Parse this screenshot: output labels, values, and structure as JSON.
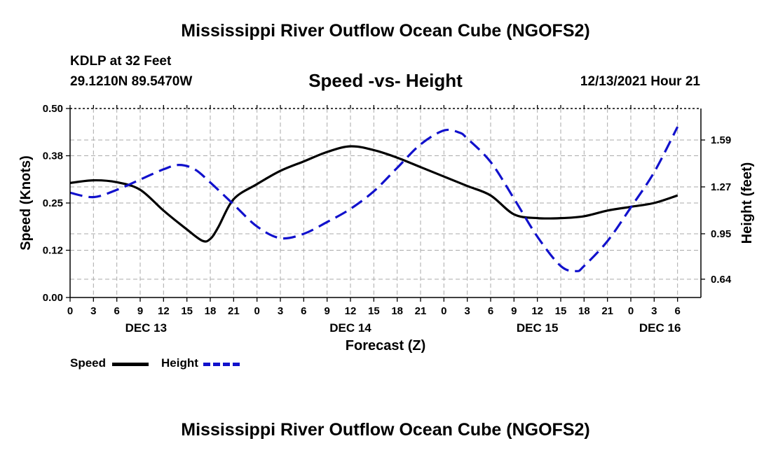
{
  "header": {
    "title": "Mississippi River Outflow Ocean Cube (NGOFS2)",
    "station": "KDLP at 32 Feet",
    "coordinates": "29.1210N  89.5470W",
    "subtitle": "Speed -vs- Height",
    "datetime": "12/13/2021 Hour 21"
  },
  "footer": {
    "title": "Mississippi River Outflow Ocean Cube (NGOFS2)"
  },
  "legend": {
    "speed_label": "Speed",
    "height_label": "Height"
  },
  "colors": {
    "speed": "#000000",
    "height": "#1111cc",
    "grid": "#aaaaaa"
  },
  "chart_data": {
    "type": "line",
    "title": "Speed -vs- Height",
    "xlabel": "Forecast (Z)",
    "ylabel": "Speed (Knots)",
    "y2label": "Height (feet)",
    "xlim": [
      0,
      81
    ],
    "ylim": [
      0.0,
      0.5
    ],
    "y2lim": [
      0.515,
      1.805
    ],
    "y_ticks": [
      "0.00",
      "0.12",
      "0.25",
      "0.38",
      "0.50"
    ],
    "y_tick_values": [
      0.0,
      0.125,
      0.25,
      0.375,
      0.5
    ],
    "y2_ticks": [
      "0.64",
      "0.95",
      "1.27",
      "1.59"
    ],
    "y2_tick_values": [
      0.64,
      0.95,
      1.27,
      1.59
    ],
    "x_tick_labels": [
      "0",
      "3",
      "6",
      "9",
      "12",
      "15",
      "18",
      "21",
      "0",
      "3",
      "6",
      "9",
      "12",
      "15",
      "18",
      "21",
      "0",
      "3",
      "6",
      "9",
      "12",
      "15",
      "18",
      "21",
      "0",
      "3",
      "6"
    ],
    "x_tick_values": [
      0,
      3,
      6,
      9,
      12,
      15,
      18,
      21,
      24,
      27,
      30,
      33,
      36,
      39,
      42,
      45,
      48,
      51,
      54,
      57,
      60,
      63,
      66,
      69,
      72,
      75,
      78
    ],
    "day_labels": [
      {
        "label": "DEC 13",
        "x": 9.75
      },
      {
        "label": "DEC 14",
        "x": 36
      },
      {
        "label": "DEC 15",
        "x": 60
      },
      {
        "label": "DEC 16",
        "x": 75.75
      }
    ],
    "grid": true,
    "legend_position": "bottom-left",
    "series": [
      {
        "name": "Speed",
        "axis": "left",
        "style": "solid",
        "points": [
          [
            0,
            0.303
          ],
          [
            3,
            0.31
          ],
          [
            6,
            0.305
          ],
          [
            9,
            0.285
          ],
          [
            12,
            0.23
          ],
          [
            15,
            0.18
          ],
          [
            17,
            0.15
          ],
          [
            18,
            0.155
          ],
          [
            19,
            0.185
          ],
          [
            21,
            0.26
          ],
          [
            24,
            0.3
          ],
          [
            27,
            0.335
          ],
          [
            30,
            0.36
          ],
          [
            33,
            0.385
          ],
          [
            36,
            0.4
          ],
          [
            39,
            0.39
          ],
          [
            42,
            0.37
          ],
          [
            45,
            0.345
          ],
          [
            48,
            0.32
          ],
          [
            51,
            0.295
          ],
          [
            54,
            0.27
          ],
          [
            57,
            0.22
          ],
          [
            60,
            0.21
          ],
          [
            63,
            0.21
          ],
          [
            66,
            0.215
          ],
          [
            69,
            0.23
          ],
          [
            72,
            0.24
          ],
          [
            75,
            0.25
          ],
          [
            78,
            0.27
          ]
        ]
      },
      {
        "name": "Height",
        "axis": "right",
        "style": "dashed",
        "points": [
          [
            0,
            1.23
          ],
          [
            3,
            1.2
          ],
          [
            6,
            1.25
          ],
          [
            9,
            1.32
          ],
          [
            12,
            1.39
          ],
          [
            14,
            1.42
          ],
          [
            16,
            1.39
          ],
          [
            18,
            1.3
          ],
          [
            21,
            1.15
          ],
          [
            24,
            1.0
          ],
          [
            27,
            0.92
          ],
          [
            30,
            0.95
          ],
          [
            33,
            1.03
          ],
          [
            36,
            1.12
          ],
          [
            39,
            1.24
          ],
          [
            42,
            1.4
          ],
          [
            45,
            1.56
          ],
          [
            48,
            1.655
          ],
          [
            50,
            1.64
          ],
          [
            51,
            1.6
          ],
          [
            54,
            1.44
          ],
          [
            57,
            1.19
          ],
          [
            60,
            0.93
          ],
          [
            63,
            0.73
          ],
          [
            65,
            0.695
          ],
          [
            66,
            0.73
          ],
          [
            69,
            0.9
          ],
          [
            72,
            1.13
          ],
          [
            75,
            1.37
          ],
          [
            78,
            1.68
          ]
        ]
      }
    ]
  }
}
